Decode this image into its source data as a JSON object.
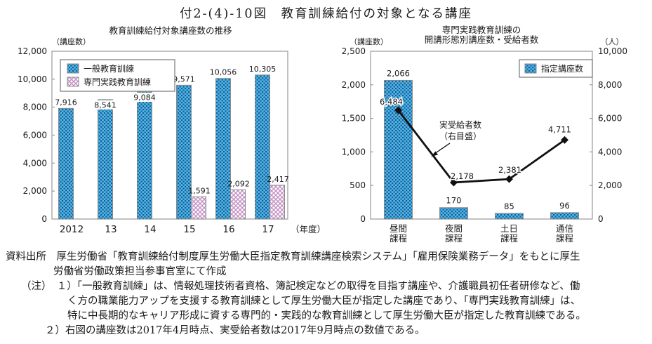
{
  "page_title": "付2-(4)-10図　教育訓練給付の対象となる講座",
  "colors": {
    "bar_blue_bg": "#4db9e0",
    "bar_blue_dot": "#1b579f",
    "bar_pink": "#c490c4",
    "bar_border": "#8a8a8a",
    "frame": "#9a9a9a",
    "line": "#111111",
    "text": "#1a1a1a"
  },
  "chart_data": [
    {
      "type": "bar",
      "title": "教育訓練給付対象講座数の推移",
      "y_unit": "（講座数）",
      "x_suffix": "（年度）",
      "categories": [
        "2012",
        "13",
        "14",
        "15",
        "16",
        "17"
      ],
      "series": [
        {
          "name": "一般教育訓練",
          "style": "blue-dots",
          "values": [
            7916,
            8541,
            9084,
            9571,
            10056,
            10305
          ]
        },
        {
          "name": "専門実践教育訓練",
          "style": "pink-hatch",
          "values": [
            null,
            null,
            null,
            1591,
            2092,
            2417
          ]
        }
      ],
      "ylim": [
        0,
        12000
      ],
      "ytick_step": 2000,
      "grid": false,
      "legend_position": "top-left"
    },
    {
      "type": "bar+line",
      "title_lines": [
        "専門実践教育訓練の",
        "開講形態別講座数・受給者数"
      ],
      "left_unit": "（講座数）",
      "right_unit": "（人）",
      "categories": [
        [
          "昼間",
          "課程"
        ],
        [
          "夜間",
          "課程"
        ],
        [
          "土日",
          "課程"
        ],
        [
          "通信",
          "課程"
        ]
      ],
      "bar_series": {
        "name": "指定講座数",
        "style": "blue-dots",
        "axis": "left",
        "values": [
          2066,
          170,
          85,
          96
        ]
      },
      "line_series": {
        "name": "実受給者数（右目盛）",
        "axis": "right",
        "values": [
          6484,
          2178,
          2381,
          4711
        ]
      },
      "left_ylim": [
        0,
        2500
      ],
      "left_step": 500,
      "right_ylim": [
        0,
        10000
      ],
      "right_step": 2000,
      "annotation": {
        "lines": [
          "実受給者数",
          "（右目盛）"
        ]
      },
      "grid": false,
      "legend_position": "top-right"
    }
  ],
  "source": {
    "line1": "資料出所　厚生労働省「教育訓練給付制度厚生労働大臣指定教育訓練講座検索システム」「雇用保険業務データ」をもとに厚生",
    "line2": "労働省労働政策担当参事官室にて作成"
  },
  "notes": {
    "line1": "（注）　１）「一般教育訓練」は、情報処理技術者資格、簿記検定などの取得を目指す講座や、介護職員初任者研修など、働",
    "line2": "く方の職業能力アップを支援する教育訓練として厚生労働大臣が指定した講座であり、「専門実践教育訓練」は、",
    "line3": "特に中長期的なキャリア形成に資する専門的・実践的な教育訓練として厚生労働大臣が指定した教育訓練である。",
    "line4": "２）右図の講座数は2017年4月時点、実受給者数は2017年9月時点の数値である。"
  }
}
